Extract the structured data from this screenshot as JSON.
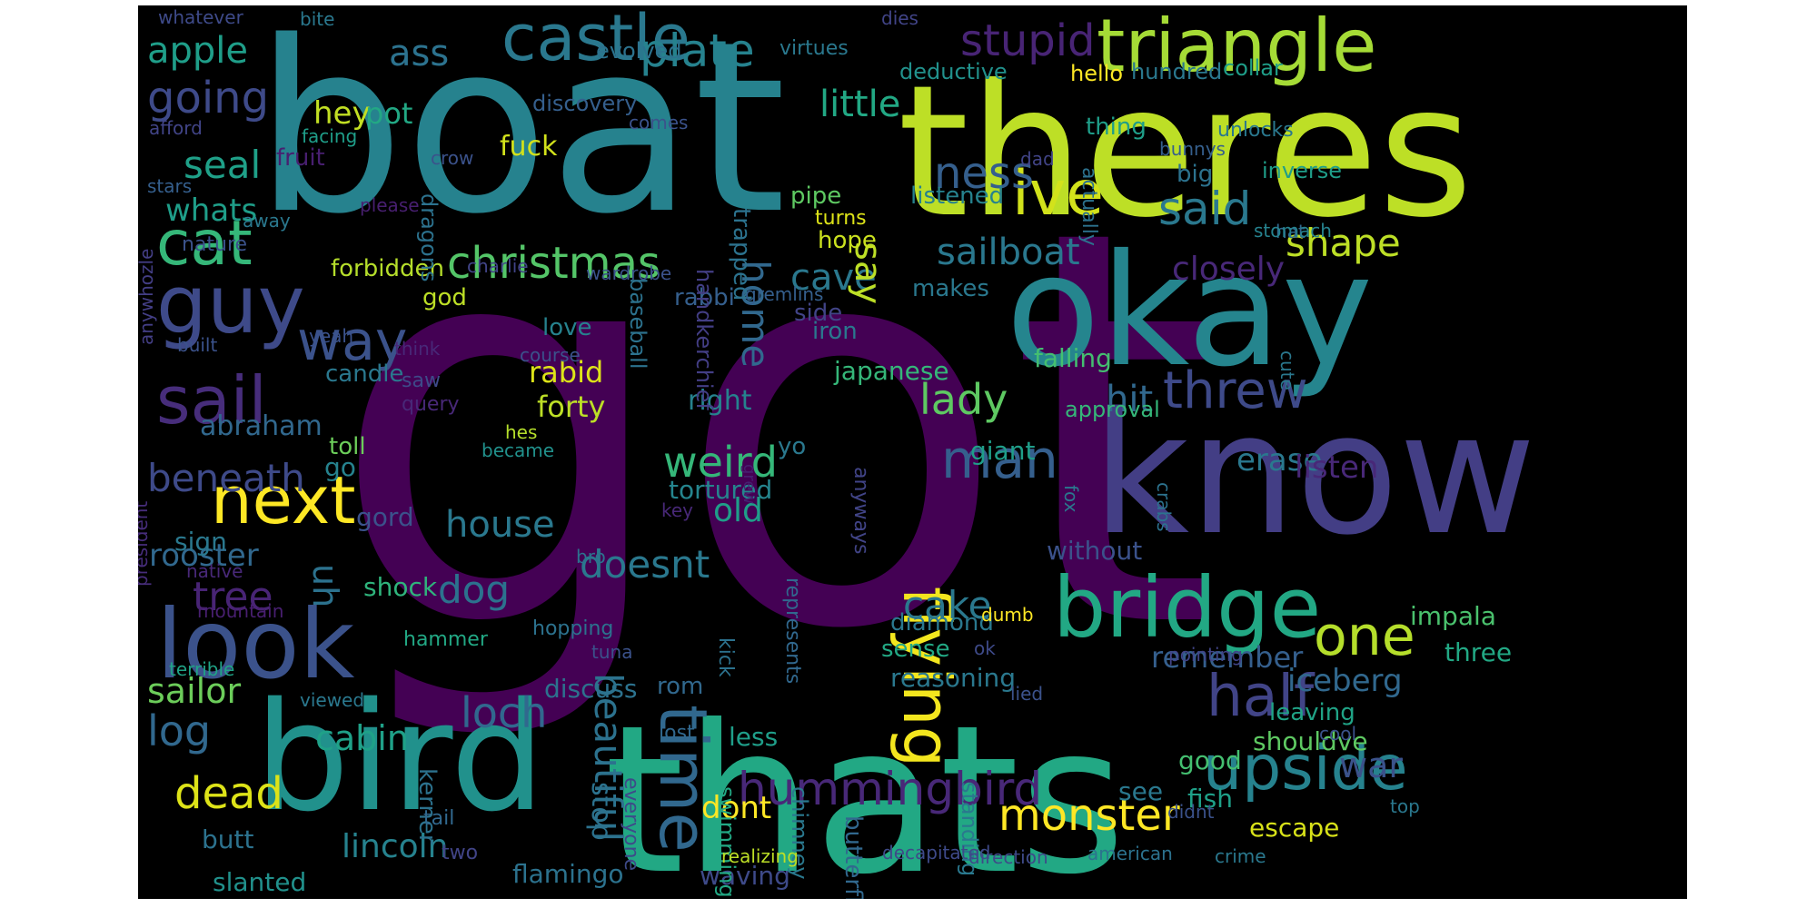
{
  "wordcloud": {
    "background": "#000000",
    "palette": "viridis",
    "words": [
      {
        "text": "got",
        "color": "#440154"
      },
      {
        "text": "boat",
        "color": "#26828e"
      },
      {
        "text": "theres",
        "color": "#bddf26"
      },
      {
        "text": "thats",
        "color": "#22a884"
      },
      {
        "text": "know",
        "color": "#433e85"
      },
      {
        "text": "okay",
        "color": "#25858e"
      },
      {
        "text": "bird",
        "color": "#21918c"
      },
      {
        "text": "look",
        "color": "#3b528b"
      },
      {
        "text": "bridge",
        "color": "#22a884"
      },
      {
        "text": "triangle",
        "color": "#a5db36"
      },
      {
        "text": "castle",
        "color": "#2a788e"
      },
      {
        "text": "guy",
        "color": "#3e4a89"
      },
      {
        "text": "ive",
        "color": "#d2e21b"
      },
      {
        "text": "flying",
        "color": "#f3e61e"
      },
      {
        "text": "sail",
        "color": "#472d7b"
      },
      {
        "text": "next",
        "color": "#fde725"
      },
      {
        "text": "cat",
        "color": "#35b779"
      },
      {
        "text": "way",
        "color": "#3b528b"
      },
      {
        "text": "time",
        "color": "#31688e"
      },
      {
        "text": "upside",
        "color": "#26828e"
      },
      {
        "text": "half",
        "color": "#414487"
      },
      {
        "text": "one",
        "color": "#b5de2b"
      },
      {
        "text": "christmas",
        "color": "#54c568"
      },
      {
        "text": "threw",
        "color": "#3e4a89"
      },
      {
        "text": "man",
        "color": "#355f8d"
      },
      {
        "text": "hummingbird",
        "color": "#482878"
      },
      {
        "text": "said",
        "color": "#2a788e"
      },
      {
        "text": "stupid",
        "color": "#482475"
      },
      {
        "text": "monster",
        "color": "#fde725"
      },
      {
        "text": "apple",
        "color": "#1f9e89"
      },
      {
        "text": "plate",
        "color": "#26828e"
      },
      {
        "text": "going",
        "color": "#3e4a89"
      },
      {
        "text": "beneath",
        "color": "#3e4a89"
      },
      {
        "text": "dead",
        "color": "#dde318"
      },
      {
        "text": "ness",
        "color": "#355f8d"
      },
      {
        "text": "loch",
        "color": "#31688e"
      },
      {
        "text": "lady",
        "color": "#5ec962"
      },
      {
        "text": "home",
        "color": "#31688e"
      },
      {
        "text": "cake",
        "color": "#2a788e"
      },
      {
        "text": "beautiful",
        "color": "#2c728e"
      },
      {
        "text": "sailboat",
        "color": "#2a788e"
      },
      {
        "text": "doesnt",
        "color": "#2a788e"
      },
      {
        "text": "weird",
        "color": "#35b779"
      },
      {
        "text": "shape",
        "color": "#bddf26"
      },
      {
        "text": "seal",
        "color": "#1fa088"
      },
      {
        "text": "log",
        "color": "#31688e"
      },
      {
        "text": "cave",
        "color": "#2a788e"
      },
      {
        "text": "house",
        "color": "#2a788e"
      },
      {
        "text": "tree",
        "color": "#482475"
      },
      {
        "text": "ass",
        "color": "#2c728e"
      },
      {
        "text": "little",
        "color": "#22a884"
      },
      {
        "text": "sailor",
        "color": "#6ccd5a"
      },
      {
        "text": "abraham",
        "color": "#31688e"
      },
      {
        "text": "dog",
        "color": "#2c728e"
      },
      {
        "text": "hit",
        "color": "#31688e"
      },
      {
        "text": "whats",
        "color": "#1f9e89"
      },
      {
        "text": "closely",
        "color": "#482878"
      },
      {
        "text": "rooster",
        "color": "#31688e"
      },
      {
        "text": "say",
        "color": "#bddf26"
      },
      {
        "text": "cabin",
        "color": "#1fa188"
      },
      {
        "text": "lincoln",
        "color": "#26828e"
      },
      {
        "text": "uh",
        "color": "#2c728e"
      },
      {
        "text": "iceberg",
        "color": "#31688e"
      },
      {
        "text": "remember",
        "color": "#355f8d"
      },
      {
        "text": "erase",
        "color": "#2a788e"
      },
      {
        "text": "listen",
        "color": "#482878"
      },
      {
        "text": "war",
        "color": "#3b528b"
      },
      {
        "text": "old",
        "color": "#1f9e89"
      },
      {
        "text": "hey",
        "color": "#c2df23"
      },
      {
        "text": "pot",
        "color": "#22a884"
      },
      {
        "text": "dont",
        "color": "#fde725"
      },
      {
        "text": "discuss",
        "color": "#2c728e"
      },
      {
        "text": "stop",
        "color": "#2c728e"
      },
      {
        "text": "less",
        "color": "#1f9e89"
      },
      {
        "text": "fuck",
        "color": "#d2e21b"
      },
      {
        "text": "forty",
        "color": "#bddf26"
      },
      {
        "text": "rabid",
        "color": "#dde318"
      },
      {
        "text": "japanese",
        "color": "#35b779"
      },
      {
        "text": "falling",
        "color": "#44bf70"
      },
      {
        "text": "giant",
        "color": "#1f9e89"
      },
      {
        "text": "tortured",
        "color": "#25858e"
      },
      {
        "text": "right",
        "color": "#26828e"
      },
      {
        "text": "waving",
        "color": "#3e4a89"
      },
      {
        "text": "flamingo",
        "color": "#2c728e"
      },
      {
        "text": "slanted",
        "color": "#21918c"
      },
      {
        "text": "butt",
        "color": "#2c728e"
      },
      {
        "text": "good",
        "color": "#44bf70"
      },
      {
        "text": "see",
        "color": "#2a788e"
      },
      {
        "text": "fish",
        "color": "#1fa088"
      },
      {
        "text": "escape",
        "color": "#d8e219"
      },
      {
        "text": "shouldve",
        "color": "#5ec962"
      },
      {
        "text": "leaving",
        "color": "#20a386"
      },
      {
        "text": "three",
        "color": "#22a884"
      },
      {
        "text": "impala",
        "color": "#4ac16d"
      },
      {
        "text": "diamond",
        "color": "#2a788e"
      },
      {
        "text": "reasoning",
        "color": "#2a788e"
      },
      {
        "text": "sense",
        "color": "#22a884"
      },
      {
        "text": "without",
        "color": "#3b528b"
      },
      {
        "text": "shock",
        "color": "#2fb47c"
      },
      {
        "text": "sign",
        "color": "#2a788e"
      },
      {
        "text": "gord",
        "color": "#3b528b"
      },
      {
        "text": "go",
        "color": "#26828e"
      },
      {
        "text": "toll",
        "color": "#6ccd5a"
      },
      {
        "text": "candle",
        "color": "#2a788e"
      },
      {
        "text": "god",
        "color": "#bddf26"
      },
      {
        "text": "forbidden",
        "color": "#b5de2b"
      },
      {
        "text": "love",
        "color": "#26828e"
      },
      {
        "text": "rabbi",
        "color": "#355f8d"
      },
      {
        "text": "iron",
        "color": "#2a788e"
      },
      {
        "text": "side",
        "color": "#414487"
      },
      {
        "text": "hope",
        "color": "#cae11f"
      },
      {
        "text": "listened",
        "color": "#26828e"
      },
      {
        "text": "makes",
        "color": "#2a788e"
      },
      {
        "text": "turns",
        "color": "#dde318"
      },
      {
        "text": "pipe",
        "color": "#5ec962"
      },
      {
        "text": "trapped",
        "color": "#2c728e"
      },
      {
        "text": "handkerchief",
        "color": "#433e85"
      },
      {
        "text": "baseball",
        "color": "#2c728e"
      },
      {
        "text": "dragons",
        "color": "#2c728e"
      },
      {
        "text": "discovery",
        "color": "#355f8d"
      },
      {
        "text": "evolved",
        "color": "#2c728e"
      },
      {
        "text": "virtues",
        "color": "#2a788e"
      },
      {
        "text": "deductive",
        "color": "#21918c"
      },
      {
        "text": "hello",
        "color": "#fde725"
      },
      {
        "text": "hundred",
        "color": "#2a788e"
      },
      {
        "text": "collar",
        "color": "#1f9e89"
      },
      {
        "text": "actually",
        "color": "#2c728e"
      },
      {
        "text": "thing",
        "color": "#1f9e89"
      },
      {
        "text": "unlocks",
        "color": "#2a788e"
      },
      {
        "text": "bunnys",
        "color": "#355f8d"
      },
      {
        "text": "big",
        "color": "#2c728e"
      },
      {
        "text": "inverse",
        "color": "#1f9e89"
      },
      {
        "text": "dad",
        "color": "#414487"
      },
      {
        "text": "hat",
        "color": "#31688e"
      },
      {
        "text": "stomach",
        "color": "#26828e"
      },
      {
        "text": "whatever",
        "color": "#3e4a89"
      },
      {
        "text": "bite",
        "color": "#2a788e"
      },
      {
        "text": "dies",
        "color": "#414487"
      },
      {
        "text": "comes",
        "color": "#3b528b"
      },
      {
        "text": "afford",
        "color": "#414487"
      },
      {
        "text": "facing",
        "color": "#1f9e89"
      },
      {
        "text": "fruit",
        "color": "#481f70"
      },
      {
        "text": "crow",
        "color": "#3b528b"
      },
      {
        "text": "stars",
        "color": "#355f8d"
      },
      {
        "text": "please",
        "color": "#481f70"
      },
      {
        "text": "away",
        "color": "#2a788e"
      },
      {
        "text": "nature",
        "color": "#3b528b"
      },
      {
        "text": "charlie",
        "color": "#414487"
      },
      {
        "text": "wardrobe",
        "color": "#3b528b"
      },
      {
        "text": "gremlins",
        "color": "#355f8d"
      },
      {
        "text": "think",
        "color": "#482878"
      },
      {
        "text": "yeah",
        "color": "#3b528b"
      },
      {
        "text": "built",
        "color": "#3b528b"
      },
      {
        "text": "anywhozle",
        "color": "#433e85"
      },
      {
        "text": "saw",
        "color": "#3e4a89"
      },
      {
        "text": "query",
        "color": "#482878"
      },
      {
        "text": "course",
        "color": "#3b528b"
      },
      {
        "text": "hes",
        "color": "#b5de2b"
      },
      {
        "text": "became",
        "color": "#21918c"
      },
      {
        "text": "yo",
        "color": "#2a788e"
      },
      {
        "text": "anyways",
        "color": "#414487"
      },
      {
        "text": "represents",
        "color": "#31688e"
      },
      {
        "text": "approval",
        "color": "#35b779"
      },
      {
        "text": "cute",
        "color": "#2a788e"
      },
      {
        "text": "key",
        "color": "#482878"
      },
      {
        "text": "native",
        "color": "#482878"
      },
      {
        "text": "president",
        "color": "#472d7b"
      },
      {
        "text": "mountain",
        "color": "#481f70"
      },
      {
        "text": "bro",
        "color": "#2c728e"
      },
      {
        "text": "hopping",
        "color": "#2c728e"
      },
      {
        "text": "tuna",
        "color": "#3b528b"
      },
      {
        "text": "hammer",
        "color": "#22a884"
      },
      {
        "text": "grew",
        "color": "#481f70"
      },
      {
        "text": "kick",
        "color": "#2c728e"
      },
      {
        "text": "dumb",
        "color": "#fde725"
      },
      {
        "text": "ok",
        "color": "#3e4a89"
      },
      {
        "text": "fox",
        "color": "#2a788e"
      },
      {
        "text": "crabs",
        "color": "#2c728e"
      },
      {
        "text": "pointing",
        "color": "#414487"
      },
      {
        "text": "terrible",
        "color": "#20a386"
      },
      {
        "text": "viewed",
        "color": "#2a788e"
      },
      {
        "text": "kerner",
        "color": "#2c728e"
      },
      {
        "text": "everyone",
        "color": "#3e4a89"
      },
      {
        "text": "rom",
        "color": "#31688e"
      },
      {
        "text": "lost",
        "color": "#31688e"
      },
      {
        "text": "swimming",
        "color": "#22a884"
      },
      {
        "text": "chimney",
        "color": "#2a788e"
      },
      {
        "text": "butterfly",
        "color": "#31688e"
      },
      {
        "text": "lied",
        "color": "#3b528b"
      },
      {
        "text": "standing",
        "color": "#2a788e"
      },
      {
        "text": "cool",
        "color": "#3b528b"
      },
      {
        "text": "top",
        "color": "#2a788e"
      },
      {
        "text": "didnt",
        "color": "#3b528b"
      },
      {
        "text": "tail",
        "color": "#31688e"
      },
      {
        "text": "two",
        "color": "#414487"
      },
      {
        "text": "realizing",
        "color": "#bddf26"
      },
      {
        "text": "decapitated",
        "color": "#3e4a89"
      },
      {
        "text": "direction",
        "color": "#3e4a89"
      },
      {
        "text": "american",
        "color": "#2c728e"
      },
      {
        "text": "crime",
        "color": "#2a788e"
      }
    ]
  }
}
